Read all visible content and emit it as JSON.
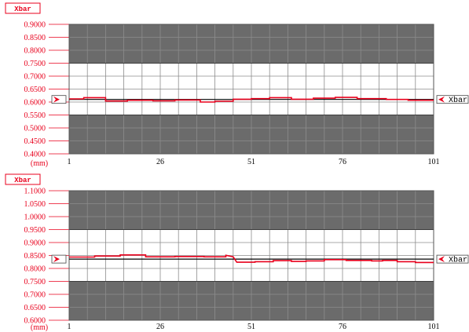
{
  "colors": {
    "label_red": "#e8001c",
    "out_of_spec_band": "#6b6b6b",
    "in_spec_band": "#ffffff",
    "grid_line": "#8c8c8c",
    "center_line": "#000000",
    "data_line": "#e8001c"
  },
  "chart_data": [
    {
      "type": "line",
      "tag": "Xbar",
      "unit_label": "(mm)",
      "side_label": "Xbar",
      "ylim": [
        0.4,
        0.9
      ],
      "y_ticks": [
        "0.9000",
        "0.8500",
        "0.8000",
        "0.7500",
        "0.7000",
        "0.6500",
        "0.6000",
        "0.5500",
        "0.5000",
        "0.4500",
        "0.4000"
      ],
      "xlim": [
        1,
        101
      ],
      "x_ticks": [
        "1",
        "26",
        "51",
        "76",
        "101"
      ],
      "spec_upper": 0.75,
      "spec_lower": 0.55,
      "center_line": 0.61,
      "series": [
        {
          "x": [
            1,
            5,
            5,
            11,
            11,
            17,
            17,
            24,
            24,
            30,
            30,
            37,
            37,
            41,
            41,
            46,
            46,
            51,
            51,
            56,
            56,
            62,
            62,
            68,
            68,
            74,
            74,
            80,
            80,
            88,
            88,
            94,
            94,
            101
          ],
          "y": [
            0.612,
            0.612,
            0.617,
            0.617,
            0.604,
            0.604,
            0.607,
            0.607,
            0.605,
            0.605,
            0.608,
            0.608,
            0.6,
            0.6,
            0.603,
            0.603,
            0.611,
            0.611,
            0.613,
            0.613,
            0.617,
            0.617,
            0.611,
            0.611,
            0.615,
            0.615,
            0.618,
            0.618,
            0.613,
            0.613,
            0.61,
            0.61,
            0.607,
            0.607
          ]
        }
      ]
    },
    {
      "type": "line",
      "tag": "Xbar",
      "unit_label": "(mm)",
      "side_label": "Xbar",
      "ylim": [
        0.6,
        1.1
      ],
      "y_ticks": [
        "1.1000",
        "1.0500",
        "1.0000",
        "0.9500",
        "0.9000",
        "0.8500",
        "0.8000",
        "0.7500",
        "0.7000",
        "0.6500",
        "0.6000"
      ],
      "xlim": [
        1,
        101
      ],
      "x_ticks": [
        "1",
        "26",
        "51",
        "76",
        "101"
      ],
      "spec_upper": 0.95,
      "spec_lower": 0.75,
      "center_line": 0.836,
      "series": [
        {
          "x": [
            1,
            8,
            8,
            15,
            15,
            22,
            22,
            30,
            30,
            38,
            38,
            44,
            44,
            46,
            47,
            52,
            52,
            57,
            57,
            62,
            62,
            66,
            66,
            71,
            71,
            77,
            77,
            84,
            84,
            87,
            87,
            91,
            91,
            96,
            96,
            101
          ],
          "y": [
            0.844,
            0.844,
            0.848,
            0.848,
            0.852,
            0.852,
            0.845,
            0.845,
            0.846,
            0.846,
            0.845,
            0.845,
            0.851,
            0.845,
            0.824,
            0.824,
            0.826,
            0.826,
            0.83,
            0.83,
            0.827,
            0.827,
            0.829,
            0.829,
            0.834,
            0.834,
            0.831,
            0.831,
            0.829,
            0.829,
            0.831,
            0.831,
            0.826,
            0.826,
            0.823,
            0.823
          ]
        }
      ]
    }
  ]
}
